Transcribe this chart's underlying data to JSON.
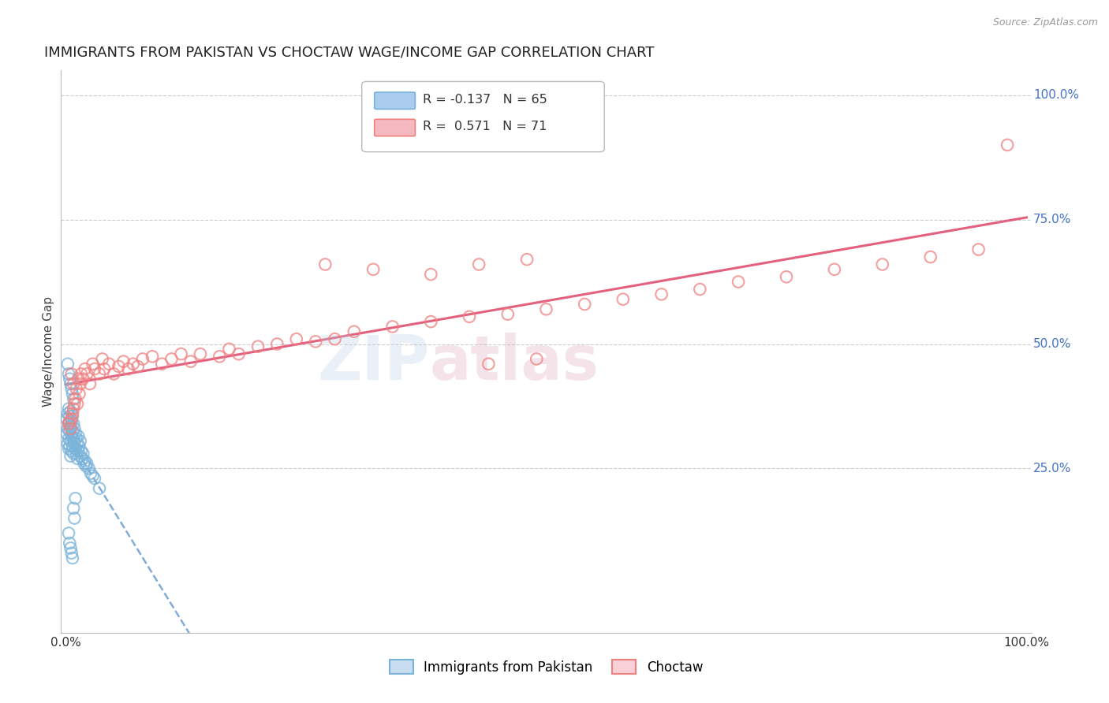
{
  "title": "IMMIGRANTS FROM PAKISTAN VS CHOCTAW WAGE/INCOME GAP CORRELATION CHART",
  "source": "Source: ZipAtlas.com",
  "ylabel": "Wage/Income Gap",
  "ytick_labels": [
    "100.0%",
    "75.0%",
    "50.0%",
    "25.0%"
  ],
  "ytick_values": [
    1.0,
    0.75,
    0.5,
    0.25
  ],
  "background_color": "#ffffff",
  "title_color": "#222222",
  "title_fontsize": 13,
  "legend_R1": "-0.137",
  "legend_N1": "65",
  "legend_R2": "0.571",
  "legend_N2": "71",
  "series1_label": "Immigrants from Pakistan",
  "series2_label": "Choctaw",
  "series1_color": "#7ab3d9",
  "series2_color": "#f08080",
  "series1_line_color": "#5a8fcc",
  "series2_line_color": "#e05070",
  "right_tick_color": "#4472c4",
  "pakistan_x": [
    0.001,
    0.001,
    0.002,
    0.002,
    0.002,
    0.003,
    0.003,
    0.003,
    0.003,
    0.004,
    0.004,
    0.004,
    0.005,
    0.005,
    0.005,
    0.005,
    0.006,
    0.006,
    0.006,
    0.007,
    0.007,
    0.007,
    0.008,
    0.008,
    0.008,
    0.009,
    0.009,
    0.01,
    0.01,
    0.011,
    0.011,
    0.012,
    0.012,
    0.013,
    0.013,
    0.014,
    0.015,
    0.015,
    0.016,
    0.017,
    0.018,
    0.019,
    0.02,
    0.021,
    0.022,
    0.024,
    0.026,
    0.028,
    0.03,
    0.035,
    0.002,
    0.003,
    0.004,
    0.005,
    0.006,
    0.007,
    0.008,
    0.003,
    0.004,
    0.005,
    0.006,
    0.007,
    0.008,
    0.009,
    0.01
  ],
  "pakistan_y": [
    0.35,
    0.32,
    0.36,
    0.33,
    0.3,
    0.37,
    0.34,
    0.31,
    0.29,
    0.355,
    0.325,
    0.295,
    0.365,
    0.335,
    0.305,
    0.275,
    0.345,
    0.315,
    0.285,
    0.355,
    0.325,
    0.295,
    0.34,
    0.31,
    0.28,
    0.33,
    0.3,
    0.32,
    0.29,
    0.31,
    0.28,
    0.3,
    0.27,
    0.315,
    0.285,
    0.295,
    0.305,
    0.275,
    0.285,
    0.27,
    0.28,
    0.26,
    0.265,
    0.255,
    0.26,
    0.25,
    0.24,
    0.235,
    0.23,
    0.21,
    0.46,
    0.44,
    0.43,
    0.42,
    0.41,
    0.4,
    0.39,
    0.12,
    0.1,
    0.09,
    0.08,
    0.07,
    0.17,
    0.15,
    0.19
  ],
  "choctaw_x": [
    0.003,
    0.004,
    0.005,
    0.006,
    0.006,
    0.007,
    0.008,
    0.008,
    0.009,
    0.01,
    0.011,
    0.012,
    0.013,
    0.014,
    0.015,
    0.016,
    0.018,
    0.02,
    0.022,
    0.025,
    0.028,
    0.03,
    0.035,
    0.038,
    0.04,
    0.045,
    0.05,
    0.055,
    0.06,
    0.065,
    0.07,
    0.075,
    0.08,
    0.09,
    0.1,
    0.11,
    0.12,
    0.13,
    0.14,
    0.16,
    0.17,
    0.18,
    0.2,
    0.22,
    0.24,
    0.26,
    0.28,
    0.3,
    0.34,
    0.38,
    0.42,
    0.46,
    0.5,
    0.54,
    0.58,
    0.62,
    0.66,
    0.7,
    0.75,
    0.8,
    0.85,
    0.9,
    0.95,
    0.27,
    0.32,
    0.38,
    0.43,
    0.48,
    0.44,
    0.49,
    0.98
  ],
  "choctaw_y": [
    0.34,
    0.345,
    0.33,
    0.35,
    0.44,
    0.36,
    0.37,
    0.42,
    0.38,
    0.39,
    0.41,
    0.38,
    0.43,
    0.4,
    0.42,
    0.44,
    0.43,
    0.45,
    0.44,
    0.42,
    0.46,
    0.45,
    0.44,
    0.47,
    0.45,
    0.46,
    0.44,
    0.455,
    0.465,
    0.45,
    0.46,
    0.455,
    0.47,
    0.475,
    0.46,
    0.47,
    0.48,
    0.465,
    0.48,
    0.475,
    0.49,
    0.48,
    0.495,
    0.5,
    0.51,
    0.505,
    0.51,
    0.525,
    0.535,
    0.545,
    0.555,
    0.56,
    0.57,
    0.58,
    0.59,
    0.6,
    0.61,
    0.625,
    0.635,
    0.65,
    0.66,
    0.675,
    0.69,
    0.66,
    0.65,
    0.64,
    0.66,
    0.67,
    0.46,
    0.47,
    0.9
  ]
}
